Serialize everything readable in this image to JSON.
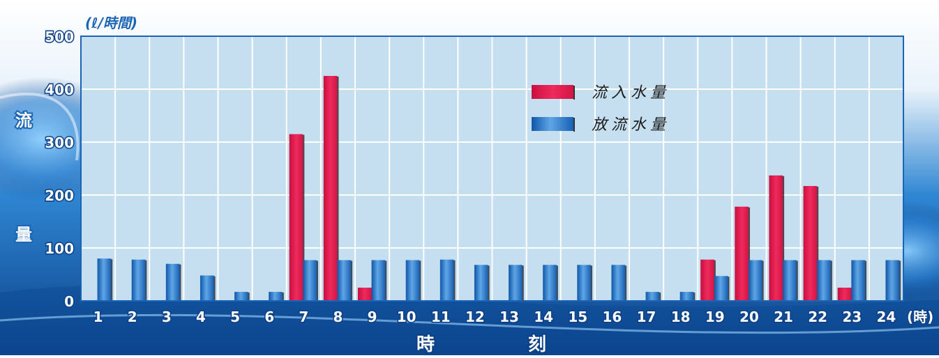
{
  "chart_data": {
    "type": "bar",
    "unit_label": "(ℓ/時間)",
    "ylabel_chars": [
      "流",
      "量"
    ],
    "xlabel_chars": [
      "時",
      "刻"
    ],
    "x_unit": "(時)",
    "ylim": [
      0,
      500
    ],
    "yticks": [
      0,
      100,
      200,
      300,
      400,
      500
    ],
    "grid": true,
    "legend_position": "top-right",
    "categories": [
      "1",
      "2",
      "3",
      "4",
      "5",
      "6",
      "7",
      "8",
      "9",
      "10",
      "11",
      "12",
      "13",
      "14",
      "15",
      "16",
      "17",
      "18",
      "19",
      "20",
      "21",
      "22",
      "23",
      "24"
    ],
    "series": [
      {
        "name": "流入水量",
        "color": "#e8184e",
        "values": [
          0,
          0,
          0,
          0,
          0,
          0,
          315,
          425,
          25,
          0,
          0,
          0,
          0,
          0,
          0,
          0,
          0,
          0,
          78,
          178,
          237,
          217,
          25,
          0
        ]
      },
      {
        "name": "放流水量",
        "color": "#1f72c0",
        "values": [
          80,
          78,
          70,
          48,
          17,
          17,
          77,
          77,
          77,
          77,
          78,
          68,
          68,
          68,
          68,
          68,
          17,
          17,
          47,
          77,
          77,
          77,
          77,
          77
        ]
      }
    ]
  },
  "colors": {
    "plot_bg": "#c5dff0",
    "frame": "#1a64b5",
    "grid": "#ffffff"
  }
}
